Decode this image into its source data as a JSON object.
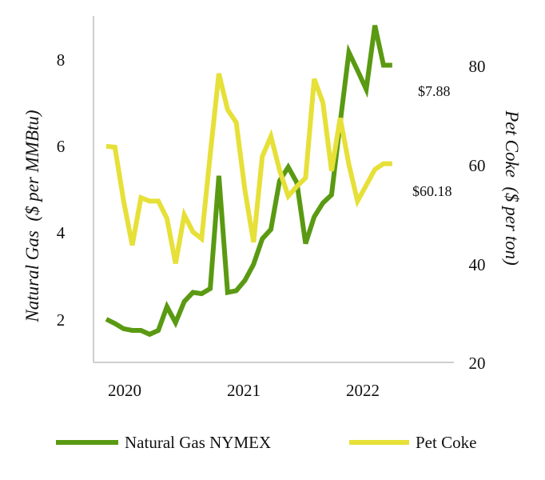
{
  "chart_data": {
    "type": "line",
    "title": "",
    "x_ticks": [
      "2020",
      "2021",
      "2022"
    ],
    "left_axis": {
      "label": "Natural Gas  ($ per MMBtu)",
      "ticks": [
        "2",
        "4",
        "6",
        "8"
      ],
      "range": [
        1,
        9
      ]
    },
    "right_axis": {
      "label": "Pet Coke  ($ per ton)",
      "ticks": [
        "20",
        "40",
        "60",
        "80"
      ],
      "range": [
        20,
        90
      ]
    },
    "x_range": [
      0,
      38
    ],
    "series": [
      {
        "name": "Natural Gas NYMEX",
        "axis": "left",
        "color": "#5a9a12",
        "end_label": "$7.88",
        "x": [
          0,
          1,
          2,
          3,
          4,
          5,
          6,
          7,
          8,
          9,
          10,
          11,
          12,
          13,
          14,
          15,
          16,
          17,
          18,
          19,
          20,
          21,
          22,
          23,
          24,
          25,
          26,
          27,
          28,
          29,
          30,
          31,
          32,
          33,
          34,
          35,
          36,
          37,
          38
        ],
        "values": [
          2.0,
          1.9,
          1.78,
          1.74,
          1.74,
          1.65,
          1.74,
          2.29,
          1.92,
          2.41,
          2.62,
          2.59,
          2.71,
          5.32,
          2.62,
          2.66,
          2.9,
          3.27,
          3.86,
          4.08,
          5.2,
          5.52,
          5.16,
          3.75,
          4.37,
          4.69,
          4.88,
          6.55,
          8.18,
          7.76,
          7.32,
          8.8,
          7.88,
          7.88,
          null,
          null,
          null,
          null,
          null
        ]
      },
      {
        "name": "Pet Coke",
        "axis": "right",
        "color": "#e6e038",
        "end_label": "$60.18",
        "x": [
          0,
          1,
          2,
          3,
          4,
          5,
          6,
          7,
          8,
          9,
          10,
          11,
          12,
          13,
          14,
          15,
          16,
          17,
          18,
          19,
          20,
          21,
          22,
          23,
          24,
          25,
          26,
          27,
          28,
          29,
          30,
          31,
          32,
          33,
          34,
          35,
          36,
          37,
          38
        ],
        "values": [
          63.7,
          63.5,
          52.6,
          43.7,
          53.3,
          52.6,
          52.6,
          49.1,
          40.0,
          49.8,
          46.4,
          45.0,
          62.1,
          78.4,
          71.1,
          68.5,
          54.8,
          44.3,
          61.6,
          65.7,
          58.9,
          53.6,
          55.6,
          57.3,
          77.3,
          72.5,
          58.7,
          69.4,
          60.0,
          52.6,
          55.8,
          59.0,
          60.18,
          60.18,
          null,
          null,
          null,
          null,
          null
        ]
      }
    ],
    "legend": {
      "placement": "bottom",
      "entries": [
        "Natural Gas NYMEX",
        "Pet Coke"
      ]
    }
  }
}
